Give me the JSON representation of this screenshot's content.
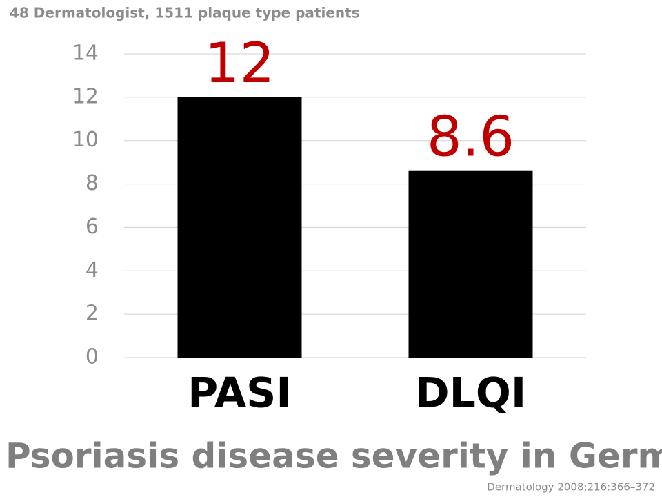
{
  "chart_data": {
    "type": "bar",
    "subtitle": "48 Dermatologist, 1511 plaque type patients",
    "title": "Psoriasis disease severity in German",
    "source": "Dermatology 2008;216:366–372",
    "categories": [
      "PASI",
      "DLQI"
    ],
    "values": [
      12,
      8.6
    ],
    "color": "#000000",
    "value_label_color": "#c00000",
    "ylim": [
      0,
      14
    ],
    "yticks": [
      0,
      2,
      4,
      6,
      8,
      10,
      12,
      14
    ],
    "grid": true
  }
}
